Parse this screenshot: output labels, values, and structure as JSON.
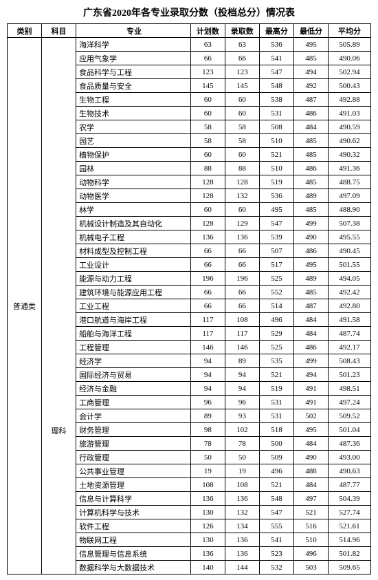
{
  "title": "广东省2020年各专业录取分数（投档总分）情况表",
  "headers": {
    "category": "类别",
    "subject": "科目",
    "major": "专业",
    "plan": "计划数",
    "admit": "录取数",
    "max": "最高分",
    "min": "最低分",
    "avg": "平均分"
  },
  "category_label": "普通类",
  "subject_label": "理科",
  "rows": [
    {
      "major": "海洋科学",
      "plan": "63",
      "admit": "63",
      "max": "536",
      "min": "495",
      "avg": "505.89"
    },
    {
      "major": "应用气象学",
      "plan": "66",
      "admit": "66",
      "max": "541",
      "min": "485",
      "avg": "490.06"
    },
    {
      "major": "食品科学与工程",
      "plan": "123",
      "admit": "123",
      "max": "547",
      "min": "494",
      "avg": "502.94"
    },
    {
      "major": "食品质量与安全",
      "plan": "145",
      "admit": "145",
      "max": "548",
      "min": "492",
      "avg": "500.43"
    },
    {
      "major": "生物工程",
      "plan": "60",
      "admit": "60",
      "max": "538",
      "min": "487",
      "avg": "492.88"
    },
    {
      "major": "生物技术",
      "plan": "60",
      "admit": "60",
      "max": "531",
      "min": "486",
      "avg": "491.03"
    },
    {
      "major": "农学",
      "plan": "58",
      "admit": "58",
      "max": "508",
      "min": "484",
      "avg": "490.59"
    },
    {
      "major": "园艺",
      "plan": "58",
      "admit": "58",
      "max": "510",
      "min": "485",
      "avg": "490.62"
    },
    {
      "major": "植物保护",
      "plan": "60",
      "admit": "60",
      "max": "521",
      "min": "485",
      "avg": "490.32"
    },
    {
      "major": "园林",
      "plan": "88",
      "admit": "88",
      "max": "510",
      "min": "486",
      "avg": "491.36"
    },
    {
      "major": "动物科学",
      "plan": "128",
      "admit": "128",
      "max": "519",
      "min": "485",
      "avg": "488.75"
    },
    {
      "major": "动物医学",
      "plan": "128",
      "admit": "132",
      "max": "536",
      "min": "489",
      "avg": "497.09"
    },
    {
      "major": "林学",
      "plan": "60",
      "admit": "60",
      "max": "495",
      "min": "485",
      "avg": "488.90"
    },
    {
      "major": "机械设计制造及其自动化",
      "plan": "128",
      "admit": "129",
      "max": "547",
      "min": "499",
      "avg": "507.38"
    },
    {
      "major": "机械电子工程",
      "plan": "136",
      "admit": "136",
      "max": "539",
      "min": "490",
      "avg": "495.55"
    },
    {
      "major": "材料成型及控制工程",
      "plan": "66",
      "admit": "66",
      "max": "507",
      "min": "486",
      "avg": "490.45"
    },
    {
      "major": "工业设计",
      "plan": "66",
      "admit": "66",
      "max": "517",
      "min": "495",
      "avg": "501.55"
    },
    {
      "major": "能源与动力工程",
      "plan": "196",
      "admit": "196",
      "max": "525",
      "min": "489",
      "avg": "494.05"
    },
    {
      "major": "建筑环境与能源应用工程",
      "plan": "66",
      "admit": "66",
      "max": "552",
      "min": "485",
      "avg": "492.42"
    },
    {
      "major": "工业工程",
      "plan": "66",
      "admit": "66",
      "max": "514",
      "min": "487",
      "avg": "492.80"
    },
    {
      "major": "港口航道与海岸工程",
      "plan": "117",
      "admit": "108",
      "max": "496",
      "min": "484",
      "avg": "491.58"
    },
    {
      "major": "船舶与海洋工程",
      "plan": "117",
      "admit": "117",
      "max": "529",
      "min": "484",
      "avg": "487.74"
    },
    {
      "major": "工程管理",
      "plan": "146",
      "admit": "146",
      "max": "525",
      "min": "486",
      "avg": "492.17"
    },
    {
      "major": "经济学",
      "plan": "94",
      "admit": "89",
      "max": "535",
      "min": "499",
      "avg": "508.43"
    },
    {
      "major": "国际经济与贸易",
      "plan": "94",
      "admit": "94",
      "max": "521",
      "min": "494",
      "avg": "501.23"
    },
    {
      "major": "经济与金融",
      "plan": "94",
      "admit": "94",
      "max": "519",
      "min": "491",
      "avg": "498.51"
    },
    {
      "major": "工商管理",
      "plan": "96",
      "admit": "96",
      "max": "531",
      "min": "491",
      "avg": "497.24"
    },
    {
      "major": "会计学",
      "plan": "89",
      "admit": "93",
      "max": "531",
      "min": "502",
      "avg": "509.52"
    },
    {
      "major": "财务管理",
      "plan": "98",
      "admit": "102",
      "max": "518",
      "min": "495",
      "avg": "501.04"
    },
    {
      "major": "旅游管理",
      "plan": "78",
      "admit": "78",
      "max": "500",
      "min": "484",
      "avg": "487.36"
    },
    {
      "major": "行政管理",
      "plan": "50",
      "admit": "50",
      "max": "509",
      "min": "490",
      "avg": "493.00"
    },
    {
      "major": "公共事业管理",
      "plan": "19",
      "admit": "19",
      "max": "496",
      "min": "488",
      "avg": "490.63"
    },
    {
      "major": "土地资源管理",
      "plan": "108",
      "admit": "108",
      "max": "521",
      "min": "484",
      "avg": "487.77"
    },
    {
      "major": "信息与计算科学",
      "plan": "136",
      "admit": "136",
      "max": "548",
      "min": "497",
      "avg": "504.39"
    },
    {
      "major": "计算机科学与技术",
      "plan": "130",
      "admit": "132",
      "max": "547",
      "min": "521",
      "avg": "527.74"
    },
    {
      "major": "软件工程",
      "plan": "126",
      "admit": "134",
      "max": "555",
      "min": "516",
      "avg": "521.61"
    },
    {
      "major": "物联网工程",
      "plan": "130",
      "admit": "136",
      "max": "541",
      "min": "510",
      "avg": "514.96"
    },
    {
      "major": "信息管理与信息系统",
      "plan": "136",
      "admit": "136",
      "max": "523",
      "min": "496",
      "avg": "501.82"
    },
    {
      "major": "数据科学与大数据技术",
      "plan": "140",
      "admit": "144",
      "max": "532",
      "min": "503",
      "avg": "509.65"
    }
  ]
}
